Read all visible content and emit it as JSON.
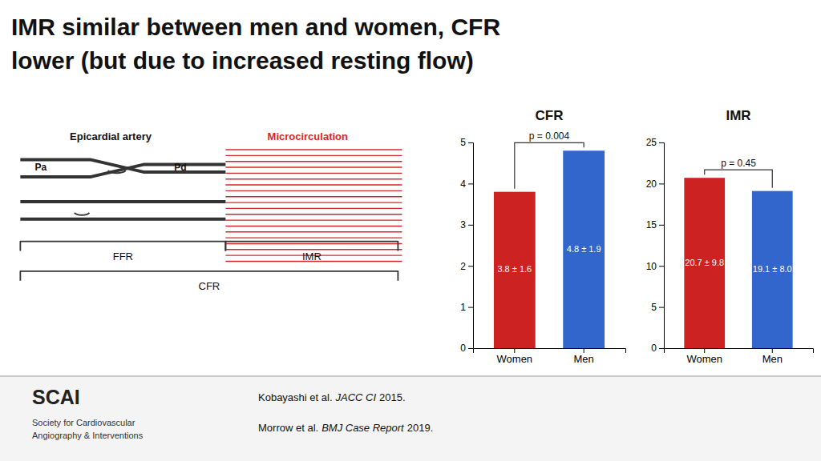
{
  "title": [
    "IMR similar between men and women, CFR",
    "lower (but due to increased resting flow)"
  ],
  "annotations": [
    "Epicardial artery",
    "Microcirculation",
    "Pa",
    "Pd",
    "FFR",
    "IMR",
    "CFR",
    "Kobayashi et al.",
    "JACC CI",
    "2015.",
    "Morrow et al.",
    "BMJ Case Report",
    "2019.",
    "SCAI",
    "Society for Cardiovascular",
    "Angiography & Interventions"
  ],
  "chart_data": [
    {
      "type": "bar",
      "title": "CFR",
      "categories": [
        "Women",
        "Men"
      ],
      "values": [
        3.8,
        4.8
      ],
      "colors": [
        "#cc2222",
        "#3366cc"
      ],
      "ylim": [
        0,
        5
      ],
      "yticks": [
        0,
        1,
        2,
        3,
        4,
        5
      ],
      "grid": false,
      "data_labels": true,
      "value_labels": [
        "3.8 ± 1.6",
        "4.8 ± 1.9"
      ],
      "annotation": "p = 0.004"
    },
    {
      "type": "bar",
      "title": "IMR",
      "categories": [
        "Women",
        "Men"
      ],
      "values": [
        20.7,
        19.1
      ],
      "colors": [
        "#cc2222",
        "#3366cc"
      ],
      "ylim": [
        0,
        25
      ],
      "yticks": [
        0,
        5,
        10,
        15,
        20,
        25
      ],
      "grid": false,
      "data_labels": true,
      "value_labels": [
        "20.7 ± 9.8",
        "19.1 ± 8.0"
      ],
      "annotation": "p = 0.45"
    }
  ]
}
